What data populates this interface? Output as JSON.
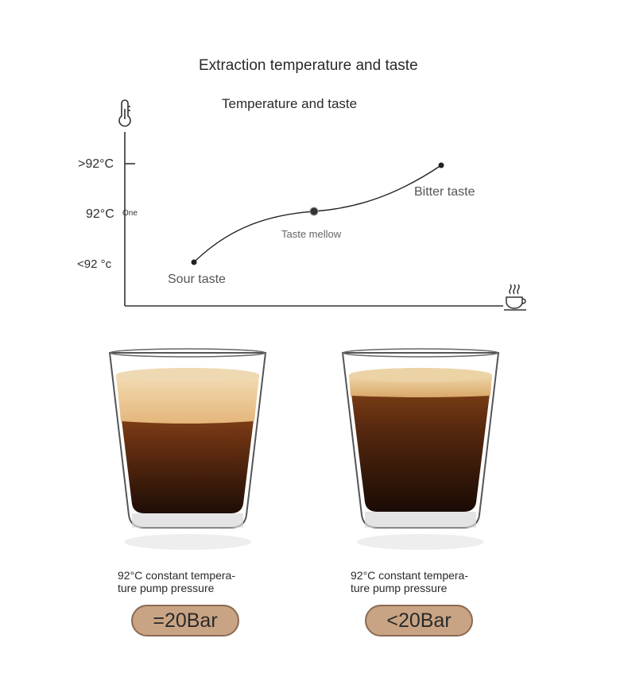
{
  "header": {
    "title": "Extraction temperature and taste",
    "subtitle": "Temperature and taste"
  },
  "chart_data": {
    "type": "line",
    "y_ticks": [
      ">92°C",
      "92°C",
      "<92 °c"
    ],
    "y_tick_note": "One",
    "points": [
      {
        "label": "Sour taste",
        "level": "<92 °c"
      },
      {
        "label": "Taste mellow",
        "level": "92°C"
      },
      {
        "label": "Bitter taste",
        "level": ">92°C"
      }
    ],
    "y_axis_icon": "thermometer-icon",
    "x_axis_icon": "coffee-cup-icon"
  },
  "cups": [
    {
      "caption_line1": "92°C constant tempera-",
      "caption_line2": "ture pump pressure",
      "badge": "=20Bar"
    },
    {
      "caption_line1": "92°C constant tempera-",
      "caption_line2": "ture pump pressure",
      "badge": "<20Bar"
    }
  ],
  "colors": {
    "badge": "#c9a484",
    "badge_border": "#8a6a52",
    "axis": "#333333",
    "crema": "#e9c48f",
    "coffee": "#3a1d10"
  }
}
